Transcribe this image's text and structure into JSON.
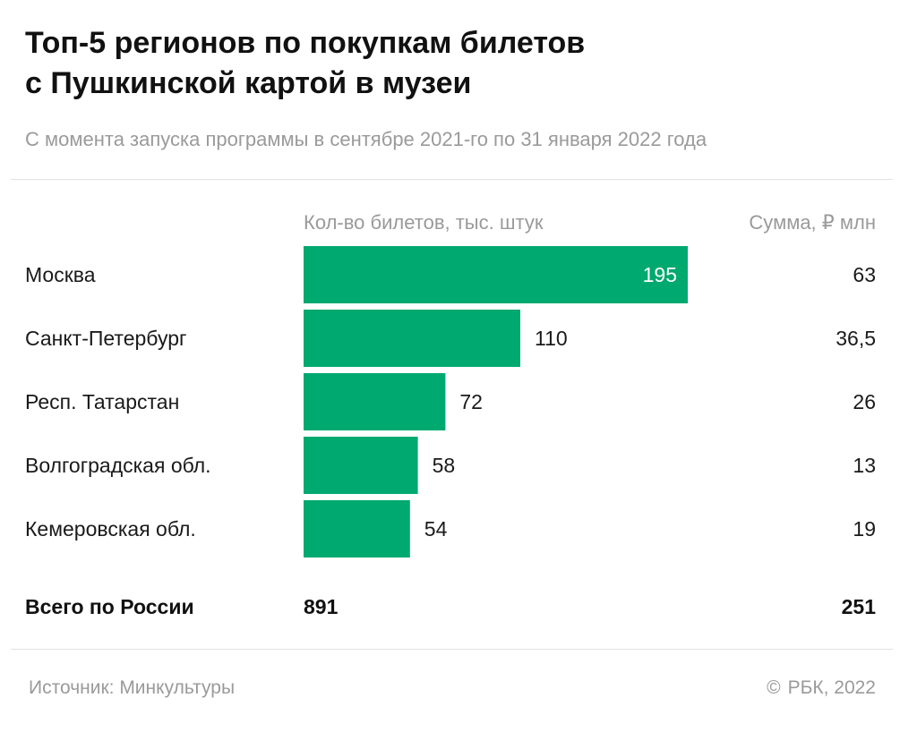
{
  "title_lines": [
    "Топ-5 регионов по покупкам билетов",
    "с Пушкинской картой в музеи"
  ],
  "subtitle": "С момента запуска программы в сентябре 2021-го по 31 января 2022 года",
  "column_headers": {
    "count": "Кол-во билетов, тыс. штук",
    "sum": "Сумма, ₽ млн"
  },
  "total": {
    "label": "Всего по России",
    "count": "891",
    "sum": "251"
  },
  "footer": {
    "source": "Источник: Минкультуры",
    "copyright_sign": "©",
    "copyright": "РБК, 2022"
  },
  "colors": {
    "bar": "#00a96f",
    "label_inside": "#ffffff",
    "text": "#1a1a1a",
    "muted": "#9a9a9a"
  },
  "chart_data": {
    "type": "bar",
    "orientation": "horizontal",
    "categories": [
      "Москва",
      "Санкт-Петербург",
      "Респ. Татарстан",
      "Волгоградская обл.",
      "Кемеровская обл."
    ],
    "series": [
      {
        "name": "Кол-во билетов, тыс. штук",
        "values": [
          195,
          110,
          72,
          58,
          54
        ],
        "labels": [
          "195",
          "110",
          "72",
          "58",
          "54"
        ]
      },
      {
        "name": "Сумма, ₽ млн",
        "values": [
          63,
          36.5,
          26,
          13,
          19
        ],
        "labels": [
          "63",
          "36,5",
          "26",
          "13",
          "19"
        ]
      }
    ],
    "xlim": [
      0,
      195
    ],
    "grid": false,
    "legend": "none"
  }
}
